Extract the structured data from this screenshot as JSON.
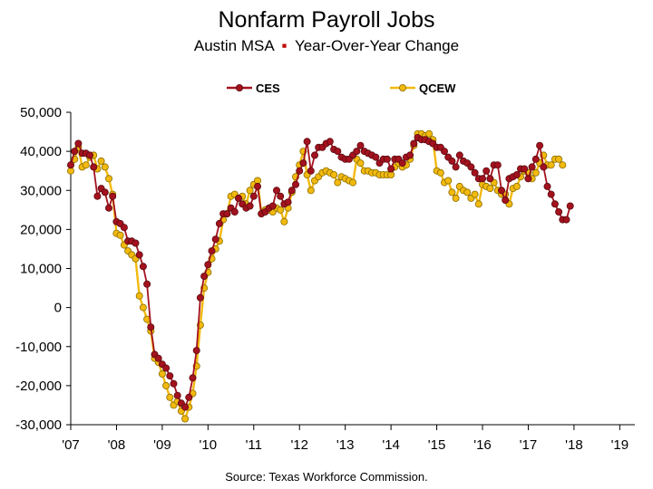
{
  "chart_data": {
    "type": "line",
    "title": "Nonfarm Payroll Jobs",
    "subtitle": {
      "part1": "Austin MSA",
      "separator": "▪",
      "part2": "Year-Over-Year Change"
    },
    "source": "Source:  Texas Workforce Commission.",
    "x_tick_labels": [
      "'07",
      "'08",
      "'09",
      "'10",
      "'11",
      "'12",
      "'13",
      "'14",
      "'15",
      "'16",
      "'17",
      "'18",
      "'19"
    ],
    "x_range": [
      2007.0,
      2019.33
    ],
    "ylim": [
      -30000,
      50000
    ],
    "y_ticks": [
      -30000,
      -20000,
      -10000,
      0,
      10000,
      20000,
      30000,
      40000,
      50000
    ],
    "y_tick_labels": [
      "-30,000",
      "-20,000",
      "-10,000",
      "0",
      "10,000",
      "20,000",
      "30,000",
      "40,000",
      "50,000"
    ],
    "grid": false,
    "legend_position": "top",
    "colors": {
      "ces": "#a3121e",
      "qcew": "#f2b90f",
      "marker_edge_qcew": "#8a6d00",
      "marker_fill_ces": "#a3121e"
    },
    "series": [
      {
        "name": "CES",
        "start": 2007.0,
        "step": 0.08333,
        "values": [
          36500,
          40000,
          42000,
          39500,
          39500,
          39000,
          36000,
          28500,
          30500,
          29500,
          25500,
          28500,
          22000,
          21500,
          20500,
          17000,
          17000,
          16500,
          13500,
          10500,
          6000,
          -5000,
          -12000,
          -13000,
          -14500,
          -15500,
          -17500,
          -19500,
          -22500,
          -24500,
          -25500,
          -23000,
          -18000,
          -11000,
          2500,
          8000,
          11000,
          14500,
          17500,
          21500,
          24000,
          24000,
          25500,
          24500,
          28000,
          26500,
          25500,
          26000,
          28500,
          31000,
          24000,
          24500,
          25500,
          26000,
          30000,
          28500,
          26500,
          27000,
          30000,
          31500,
          35000,
          37000,
          42500,
          35000,
          39000,
          41000,
          41000,
          42000,
          42500,
          40500,
          40000,
          38500,
          38000,
          38000,
          39000,
          40000,
          41500,
          40000,
          39500,
          39000,
          38500,
          37000,
          38000,
          38000,
          35500,
          38000,
          38000,
          37000,
          38500,
          39000,
          42000,
          43500,
          43000,
          43000,
          42500,
          42000,
          41000,
          41000,
          40000,
          38500,
          37500,
          36000,
          39000,
          37500,
          37000,
          36000,
          34500,
          33000,
          33000,
          35000,
          33000,
          36500,
          36500,
          30000,
          27500,
          33000,
          33500,
          34000,
          35500,
          35500,
          33000,
          36000,
          38000,
          41500,
          36000,
          31000,
          29000,
          26500,
          24500,
          22500,
          22500,
          26000
        ]
      },
      {
        "name": "QCEW",
        "start": 2007.0,
        "step": 0.08333,
        "values": [
          35000,
          38000,
          41000,
          36000,
          36500,
          38500,
          39000,
          35500,
          37500,
          36000,
          33000,
          29000,
          19000,
          18500,
          16000,
          14500,
          13500,
          12500,
          3000,
          0,
          -3000,
          -6000,
          -13000,
          -14000,
          -17000,
          -20000,
          -23000,
          -25000,
          -24000,
          -26500,
          -28500,
          -25500,
          -22000,
          -15000,
          -4500,
          5000,
          9000,
          12500,
          15000,
          17000,
          22500,
          24000,
          28500,
          29000,
          28000,
          28500,
          26500,
          30000,
          31500,
          32500,
          24000,
          25000,
          25000,
          24500,
          25500,
          25000,
          22000,
          25500,
          29500,
          33500,
          36500,
          40000,
          34000,
          30000,
          32500,
          33500,
          34500,
          35000,
          34500,
          34000,
          32000,
          33500,
          33000,
          32500,
          32000,
          38000,
          37000,
          35000,
          35000,
          34500,
          34500,
          34000,
          34000,
          34000,
          34000,
          36000,
          37000,
          36000,
          36500,
          38000,
          41500,
          44500,
          44500,
          44000,
          44500,
          43000,
          35000,
          34500,
          32000,
          32500,
          29500,
          28000,
          31000,
          30000,
          29500,
          28000,
          29000,
          26500,
          31500,
          31000,
          30500,
          32000,
          30000,
          29000,
          29000,
          26500,
          30500,
          31000,
          33500,
          35000,
          34500,
          33000,
          34500,
          37000,
          39000,
          36500,
          36500,
          38000,
          38000,
          36500
        ]
      }
    ]
  }
}
